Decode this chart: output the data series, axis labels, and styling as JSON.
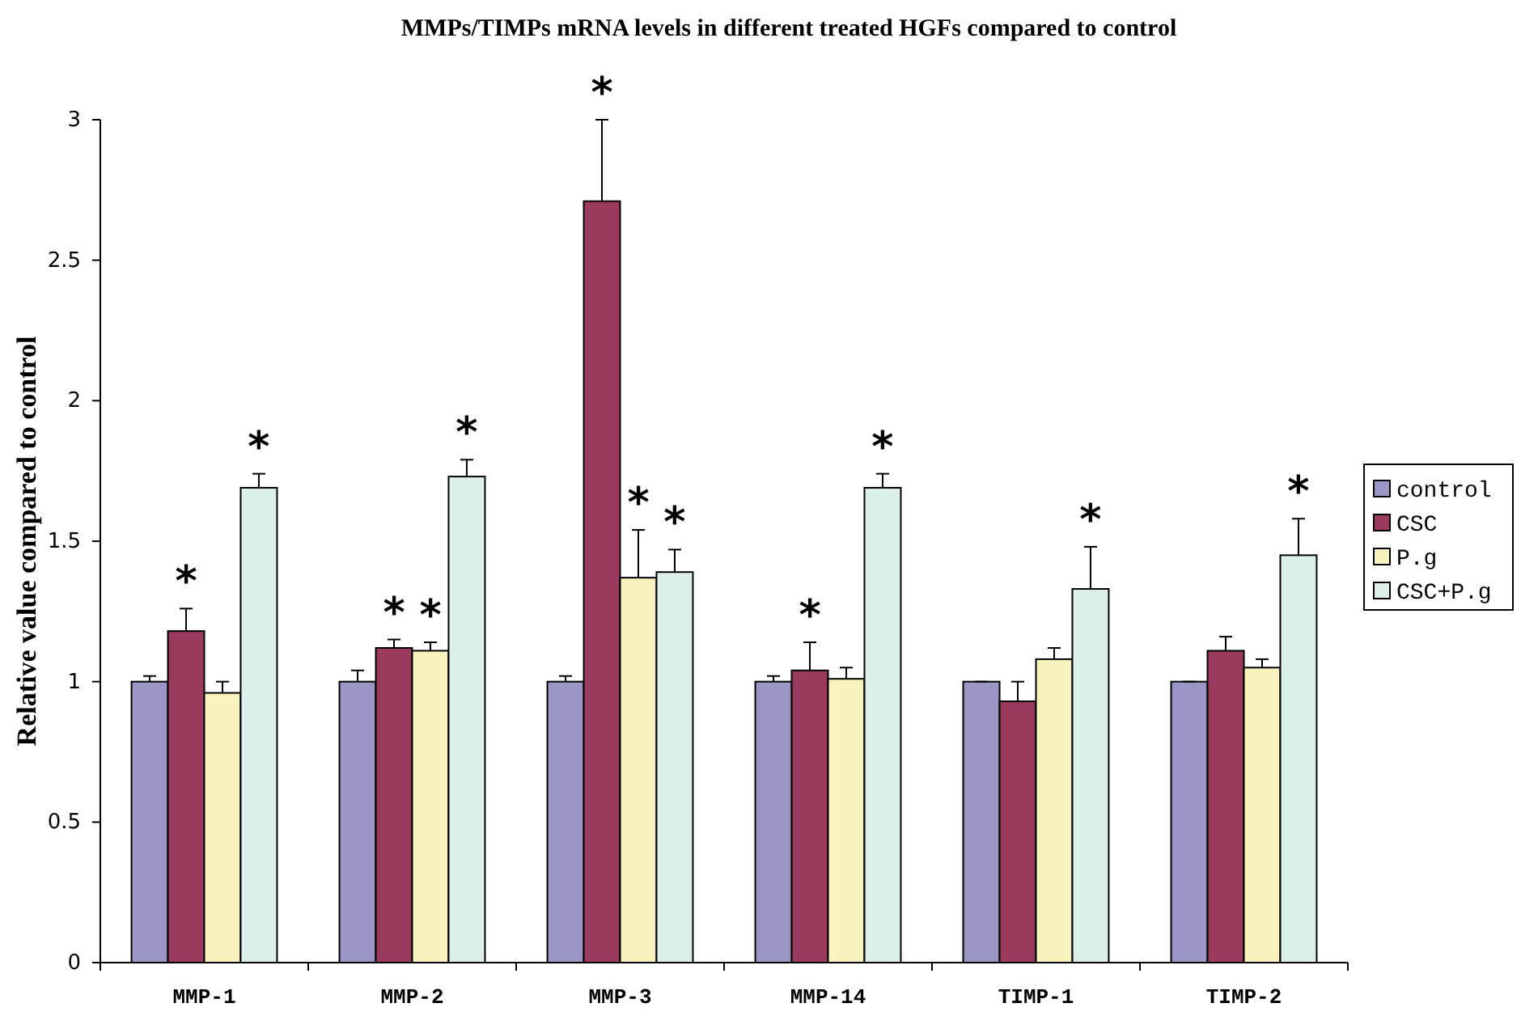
{
  "chart_data": {
    "type": "bar",
    "title": "MMPs/TIMPs mRNA levels in different treated HGFs compared to control",
    "ylabel": "Relative value compared to control",
    "categories": [
      "MMP-1",
      "MMP-2",
      "MMP-3",
      "MMP-14",
      "TIMP-1",
      "TIMP-2"
    ],
    "series": [
      {
        "name": "control",
        "color": "#9a96c6",
        "values": [
          1.0,
          1.0,
          1.0,
          1.0,
          1.0,
          1.0
        ],
        "errors": [
          [
            1.0,
            1.02
          ],
          [
            1.0,
            1.04
          ],
          [
            1.0,
            1.02
          ],
          [
            1.0,
            1.02
          ],
          [
            1.0,
            1.0
          ],
          [
            1.0,
            1.0
          ]
        ]
      },
      {
        "name": "CSC",
        "color": "#993a5e",
        "values": [
          1.18,
          1.12,
          2.71,
          1.04,
          0.93,
          1.11
        ],
        "errors": [
          [
            1.18,
            1.26
          ],
          [
            1.12,
            1.15
          ],
          [
            2.71,
            3.0
          ],
          [
            1.04,
            1.14
          ],
          [
            0.93,
            1.0
          ],
          [
            1.11,
            1.16
          ]
        ],
        "value_labels": [
          "*",
          "*",
          "*",
          "*",
          null,
          null
        ]
      },
      {
        "name": "P.g",
        "color": "#f8f3bc",
        "values": [
          0.96,
          1.11,
          1.37,
          1.01,
          1.08,
          1.05
        ],
        "errors": [
          [
            0.96,
            1.0
          ],
          [
            1.11,
            1.14
          ],
          [
            1.37,
            1.54
          ],
          [
            1.01,
            1.05
          ],
          [
            1.08,
            1.12
          ],
          [
            1.05,
            1.08
          ]
        ],
        "value_labels": [
          null,
          "*",
          "*",
          null,
          null,
          null
        ]
      },
      {
        "name": "CSC+P.g",
        "color": "#dcefea",
        "values": [
          1.69,
          1.73,
          1.39,
          1.69,
          1.33,
          1.45
        ],
        "errors": [
          [
            1.69,
            1.74
          ],
          [
            1.73,
            1.79
          ],
          [
            1.39,
            1.47
          ],
          [
            1.69,
            1.74
          ],
          [
            1.33,
            1.48
          ],
          [
            1.45,
            1.58
          ]
        ],
        "value_labels": [
          "*",
          "*",
          "*",
          "*",
          "*",
          "*"
        ]
      }
    ],
    "ylim": [
      0,
      3
    ],
    "yticks": [
      0,
      0.5,
      1,
      1.5,
      2,
      2.5,
      3
    ],
    "legend": "right",
    "grid": false
  }
}
